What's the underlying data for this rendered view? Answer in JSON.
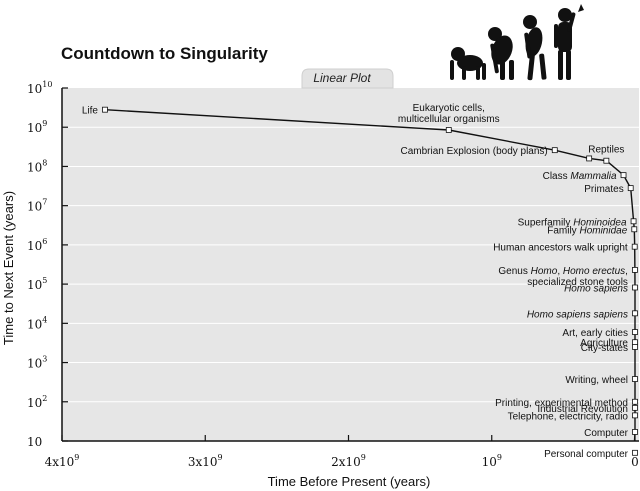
{
  "chart_data": {
    "type": "scatter",
    "title": "Countdown to Singularity",
    "tab_label": "Linear Plot",
    "xlabel": "Time Before Present (years)",
    "ylabel": "Time to Next Event (years)",
    "x_axis": {
      "min": 4000000000,
      "max": 0,
      "reversed": true,
      "scale": "linear",
      "ticks": [
        {
          "value": 4000000000,
          "base": "4x10",
          "exp": "9"
        },
        {
          "value": 3000000000,
          "base": "3x10",
          "exp": "9"
        },
        {
          "value": 2000000000,
          "base": "2x10",
          "exp": "9"
        },
        {
          "value": 1000000000,
          "base": "10",
          "exp": "9"
        },
        {
          "value": 0,
          "base": "0",
          "exp": ""
        }
      ]
    },
    "y_axis": {
      "scale": "log",
      "min_exp": 1,
      "max_exp": 10,
      "ticks": [
        {
          "exp": 10,
          "base": "10",
          "sup": "10"
        },
        {
          "exp": 9,
          "base": "10",
          "sup": "9"
        },
        {
          "exp": 8,
          "base": "10",
          "sup": "8"
        },
        {
          "exp": 7,
          "base": "10",
          "sup": "7"
        },
        {
          "exp": 6,
          "base": "10",
          "sup": "6"
        },
        {
          "exp": 5,
          "base": "10",
          "sup": "5"
        },
        {
          "exp": 4,
          "base": "10",
          "sup": "4"
        },
        {
          "exp": 3,
          "base": "10",
          "sup": "3"
        },
        {
          "exp": 2,
          "base": "10",
          "sup": "2"
        },
        {
          "exp": 1,
          "base": "10",
          "sup": ""
        }
      ]
    },
    "curve": [
      {
        "x": 3700000000,
        "y": 2800000000
      },
      {
        "x": 1300000000,
        "y": 850000000
      },
      {
        "x": 560000000,
        "y": 260000000
      },
      {
        "x": 320000000,
        "y": 160000000
      },
      {
        "x": 200000000,
        "y": 140000000
      },
      {
        "x": 80000000,
        "y": 60000000
      },
      {
        "x": 30000000,
        "y": 28000000
      },
      {
        "x": 10000000,
        "y": 4000000
      },
      {
        "x": 5000000,
        "y": 2500000
      },
      {
        "x": 2000000,
        "y": 900000
      },
      {
        "x": 500000,
        "y": 230000
      },
      {
        "x": 100000,
        "y": 82000
      },
      {
        "x": 25000,
        "y": 18000
      },
      {
        "x": 10000,
        "y": 6000
      },
      {
        "x": 6000,
        "y": 3300
      },
      {
        "x": 5000,
        "y": 2500
      },
      {
        "x": 1000,
        "y": 380
      },
      {
        "x": 200,
        "y": 100
      },
      {
        "x": 100,
        "y": 70
      },
      {
        "x": 30,
        "y": 45
      },
      {
        "x": 10,
        "y": 17
      }
    ],
    "events": [
      {
        "x": 3700000000,
        "y": 2800000000,
        "anchor": "end",
        "lines": [
          [
            {
              "t": "Life"
            }
          ]
        ]
      },
      {
        "x": 1300000000,
        "y": 850000000,
        "anchor": "middle",
        "lines": [
          [
            {
              "t": "Eukaryotic cells,"
            }
          ],
          [
            {
              "t": "multicellular organisms"
            }
          ]
        ]
      },
      {
        "x": 560000000,
        "y": 260000000,
        "anchor": "end",
        "lines": [
          [
            {
              "t": "Cambrian Explosion (body plans)"
            }
          ]
        ]
      },
      {
        "x": 320000000,
        "y": 160000000,
        "anchor": "none",
        "lines": []
      },
      {
        "x": 200000000,
        "y": 140000000,
        "anchor": "middle",
        "lines": [
          [
            {
              "t": "Reptiles"
            }
          ]
        ]
      },
      {
        "x": 80000000,
        "y": 60000000,
        "anchor": "end",
        "lines": [
          [
            {
              "t": "Class "
            },
            {
              "t": "Mammalia",
              "i": true
            }
          ]
        ]
      },
      {
        "x": 30000000,
        "y": 28000000,
        "anchor": "end",
        "lines": [
          [
            {
              "t": "Primates"
            }
          ]
        ]
      },
      {
        "x": 10000000,
        "y": 4000000,
        "anchor": "end",
        "lines": [
          [
            {
              "t": "Superfamily "
            },
            {
              "t": "Hominoidea",
              "i": true
            }
          ]
        ]
      },
      {
        "x": 5000000,
        "y": 2500000,
        "anchor": "end",
        "lines": [
          [
            {
              "t": "Family "
            },
            {
              "t": "Hominidae",
              "i": true
            }
          ]
        ]
      },
      {
        "x": 2000000,
        "y": 900000,
        "anchor": "end",
        "lines": [
          [
            {
              "t": "Human ancestors walk upright"
            }
          ]
        ]
      },
      {
        "x": 500000,
        "y": 230000,
        "anchor": "end",
        "lines": [
          [
            {
              "t": "Genus "
            },
            {
              "t": "Homo",
              "i": true
            },
            {
              "t": ", "
            },
            {
              "t": "Homo erectus",
              "i": true
            },
            {
              "t": ","
            }
          ],
          [
            {
              "t": "specialized stone tools"
            }
          ]
        ]
      },
      {
        "x": 100000,
        "y": 82000,
        "anchor": "end",
        "lines": [
          [
            {
              "t": "Homo sapiens",
              "i": true
            }
          ]
        ]
      },
      {
        "x": 25000,
        "y": 18000,
        "anchor": "end",
        "lines": [
          [
            {
              "t": "Homo sapiens sapiens",
              "i": true
            }
          ]
        ]
      },
      {
        "x": 10000,
        "y": 6000,
        "anchor": "end",
        "lines": [
          [
            {
              "t": "Art, early cities"
            }
          ]
        ]
      },
      {
        "x": 6000,
        "y": 3300,
        "anchor": "end",
        "lines": [
          [
            {
              "t": "Agriculture"
            }
          ]
        ]
      },
      {
        "x": 5000,
        "y": 2500,
        "anchor": "end",
        "lines": [
          [
            {
              "t": "City-states"
            }
          ]
        ]
      },
      {
        "x": 1000,
        "y": 380,
        "anchor": "end",
        "lines": [
          [
            {
              "t": "Writing, wheel"
            }
          ]
        ]
      },
      {
        "x": 200,
        "y": 100,
        "anchor": "end",
        "lines": [
          [
            {
              "t": "Printing, experimental method"
            }
          ]
        ]
      },
      {
        "x": 100,
        "y": 70,
        "anchor": "end",
        "lines": [
          [
            {
              "t": "Industrial Revolution"
            }
          ]
        ]
      },
      {
        "x": 30,
        "y": 45,
        "anchor": "end",
        "lines": [
          [
            {
              "t": "Telephone, electricity, radio"
            }
          ]
        ]
      },
      {
        "x": 10,
        "y": 17,
        "anchor": "end",
        "lines": [
          [
            {
              "t": "Computer"
            }
          ]
        ]
      },
      {
        "x": 5,
        "y": 5,
        "anchor": "end",
        "lines": [
          [
            {
              "t": "Personal computer"
            }
          ]
        ]
      }
    ],
    "grid": true,
    "colors": {
      "plot_bg": "#e6e6e6",
      "grid": "#ffffff",
      "line": "#111111",
      "marker_fill": "#ffffff"
    }
  }
}
